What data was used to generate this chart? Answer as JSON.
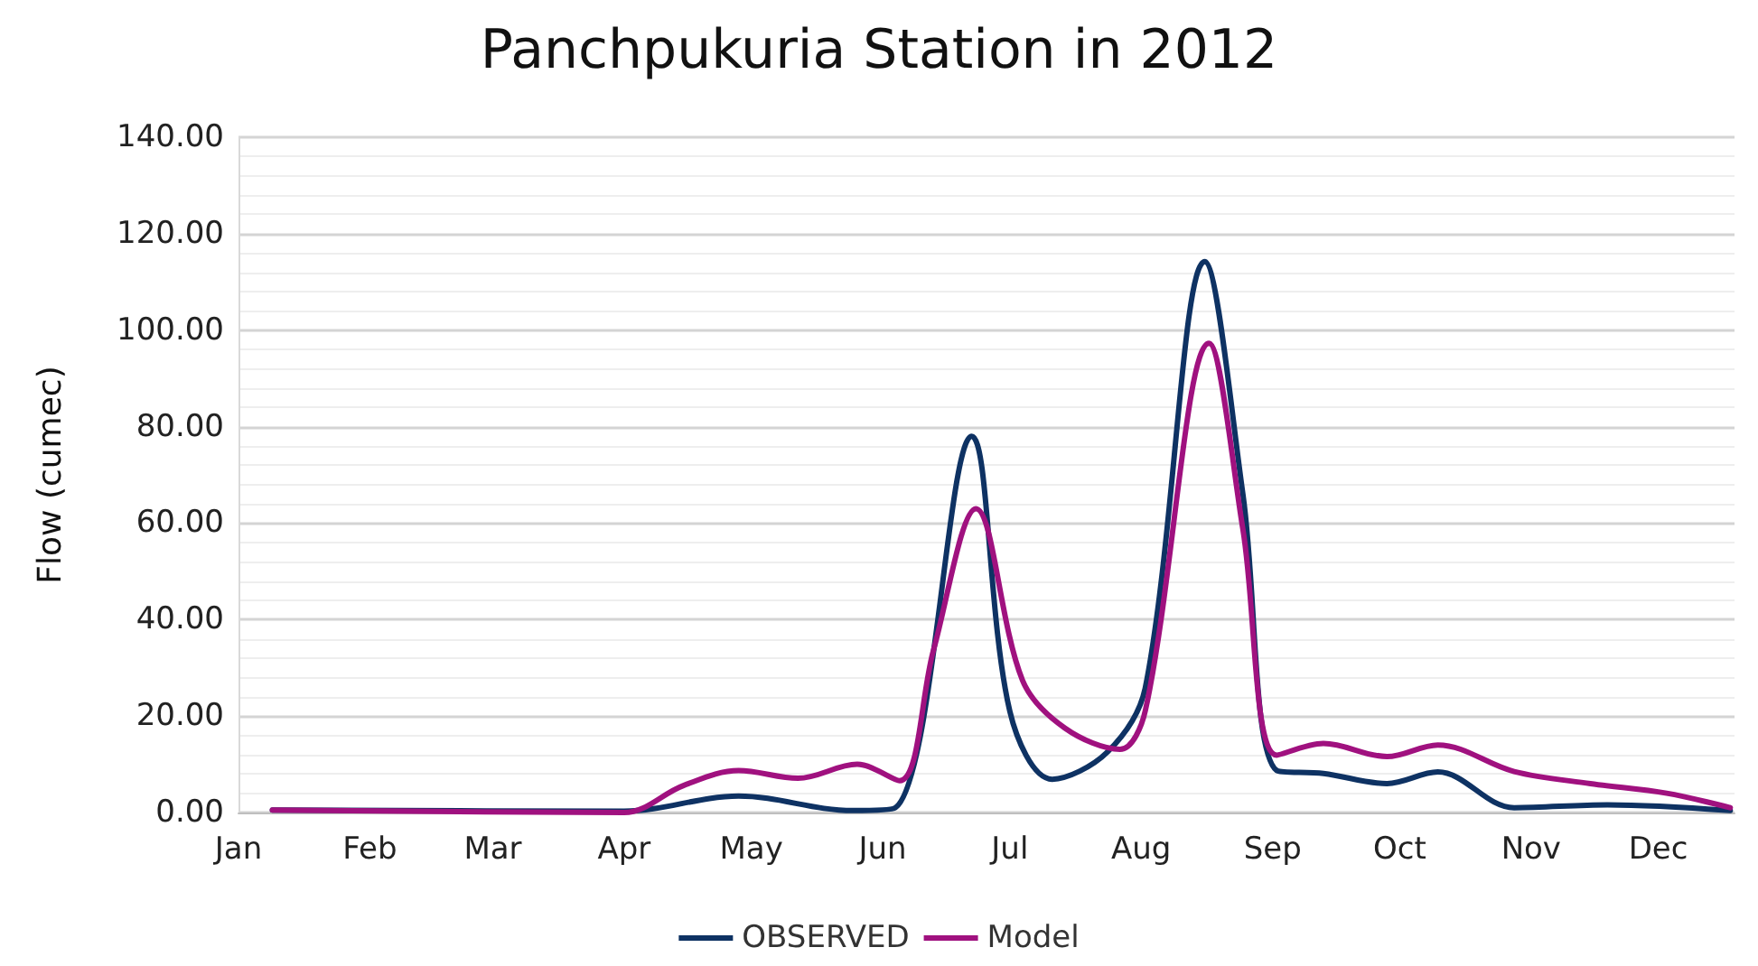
{
  "chart_data": {
    "type": "line",
    "title": "Panchpukuria Station in 2012",
    "ylabel": "Flow (cumec)",
    "xlim": [
      "2012-01-01",
      "2012-12-19"
    ],
    "xticks": [
      {
        "value": "2012-01-01",
        "label": "Jan"
      },
      {
        "value": "2012-02-01",
        "label": "Feb"
      },
      {
        "value": "2012-03-01",
        "label": "Mar"
      },
      {
        "value": "2012-04-01",
        "label": "Apr"
      },
      {
        "value": "2012-05-01",
        "label": "May"
      },
      {
        "value": "2012-06-01",
        "label": "Jun"
      },
      {
        "value": "2012-07-01",
        "label": "Jul"
      },
      {
        "value": "2012-08-01",
        "label": "Aug"
      },
      {
        "value": "2012-09-01",
        "label": "Sep"
      },
      {
        "value": "2012-10-01",
        "label": "Oct"
      },
      {
        "value": "2012-11-01",
        "label": "Nov"
      },
      {
        "value": "2012-12-01",
        "label": "Dec"
      }
    ],
    "ylim": [
      0,
      140
    ],
    "yticks": [
      {
        "value": 0,
        "label": "0.00"
      },
      {
        "value": 20,
        "label": "20.00"
      },
      {
        "value": 40,
        "label": "40.00"
      },
      {
        "value": 60,
        "label": "60.00"
      },
      {
        "value": 80,
        "label": "80.00"
      },
      {
        "value": 100,
        "label": "100.00"
      },
      {
        "value": 120,
        "label": "120.00"
      },
      {
        "value": 140,
        "label": "140.00"
      }
    ],
    "grid": "y",
    "legend": "bottom",
    "marker": "none",
    "line_style": "solid",
    "series": [
      {
        "name": "OBSERVED",
        "color": "#0e3263",
        "x": [
          "2012-01-09",
          "2012-04-01",
          "2012-04-28",
          "2012-05-25",
          "2012-06-04",
          "2012-06-22",
          "2012-07-01",
          "2012-07-11",
          "2012-07-24",
          "2012-08-02",
          "2012-08-16",
          "2012-08-25",
          "2012-09-02",
          "2012-09-13",
          "2012-09-28",
          "2012-10-10",
          "2012-10-28",
          "2012-11-19",
          "2012-12-18"
        ],
        "values": [
          0.5,
          0.3,
          3.4,
          0.4,
          1,
          78,
          21,
          6.9,
          12.5,
          26,
          114.2,
          66,
          8.7,
          8.1,
          6,
          8.4,
          1,
          1.6,
          0.4
        ]
      },
      {
        "name": "Model",
        "color": "#a0117f",
        "x": [
          "2012-01-09",
          "2012-04-01",
          "2012-04-15",
          "2012-04-28",
          "2012-05-12",
          "2012-05-26",
          "2012-06-05",
          "2012-06-13",
          "2012-06-23",
          "2012-07-04",
          "2012-07-14",
          "2012-07-27",
          "2012-08-02",
          "2012-08-17",
          "2012-08-25",
          "2012-09-02",
          "2012-09-13",
          "2012-09-28",
          "2012-10-10",
          "2012-10-28",
          "2012-11-15",
          "2012-12-03",
          "2012-12-18"
        ],
        "values": [
          0.5,
          0,
          5.6,
          8.7,
          7.1,
          10,
          6.6,
          33.7,
          63,
          27.4,
          17.5,
          13.1,
          21.2,
          97.3,
          58.7,
          11.9,
          14.3,
          11.6,
          14,
          8.5,
          6,
          4,
          1
        ]
      }
    ]
  }
}
